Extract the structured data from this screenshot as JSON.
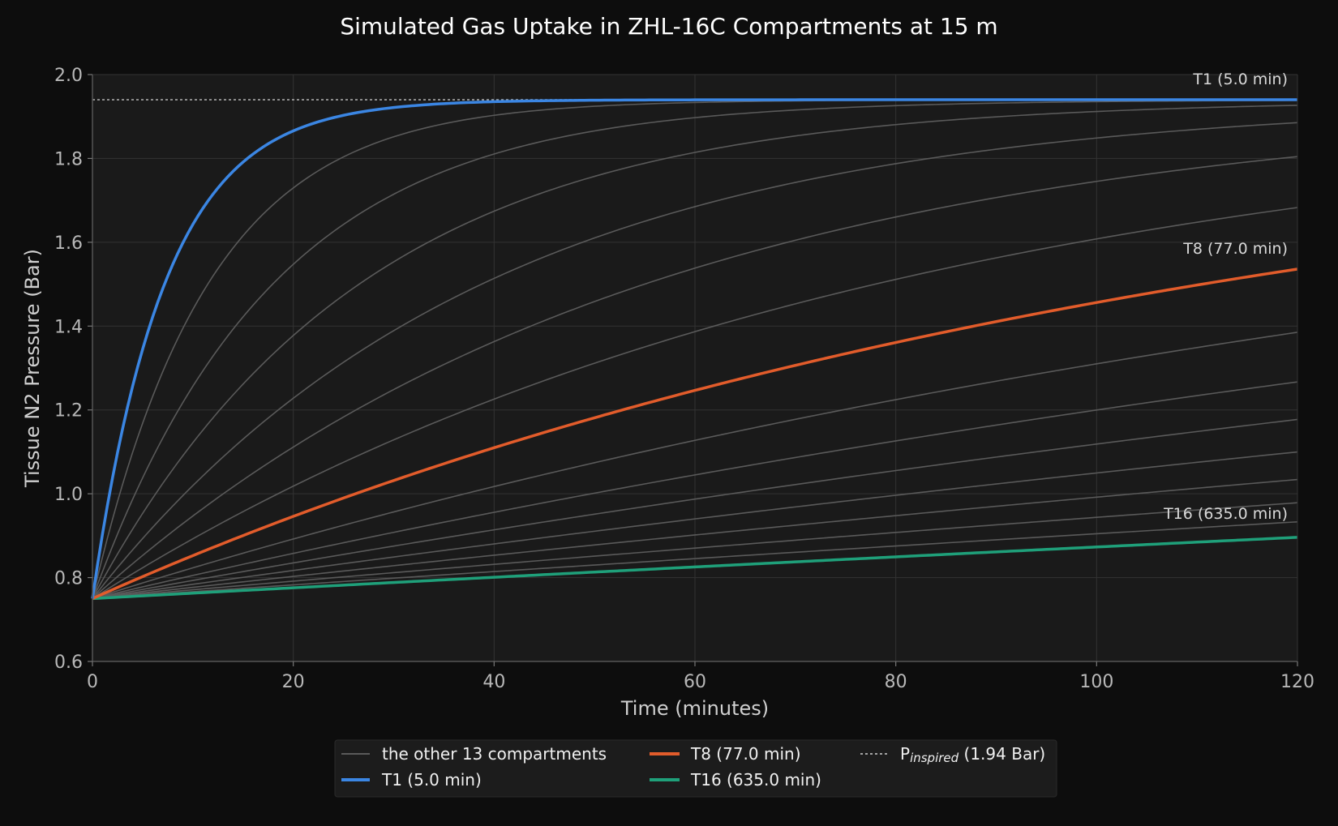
{
  "chart_data": {
    "type": "line",
    "title": "Simulated Gas Uptake in ZHL-16C Compartments at 15 m",
    "xlabel": "Time (minutes)",
    "ylabel": "Tissue N2 Pressure (Bar)",
    "xlim": [
      0,
      120
    ],
    "ylim": [
      0.6,
      2.0
    ],
    "xticks": [
      "0",
      "20",
      "40",
      "60",
      "80",
      "100",
      "120"
    ],
    "yticks": [
      "0.6",
      "0.8",
      "1.0",
      "1.2",
      "1.4",
      "1.6",
      "1.8",
      "2.0"
    ],
    "grid": true,
    "legend_position": "below",
    "p_initial": 0.75,
    "p_inspired": 1.94,
    "x": [
      0,
      5,
      10,
      15,
      20,
      30,
      40,
      60,
      80,
      100,
      120
    ],
    "series": [
      {
        "name": "T1 (5.0 min)",
        "half_time": 5.0,
        "color": "#3b86e3",
        "highlight": true,
        "values": [
          0.75,
          1.345,
          1.643,
          1.791,
          1.866,
          1.921,
          1.935,
          1.94,
          1.94,
          1.94,
          1.94
        ]
      },
      {
        "name": "T8 (77.0 min)",
        "half_time": 77.0,
        "color": "#e25c2b",
        "highlight": true,
        "values": [
          0.75,
          0.803,
          0.855,
          0.905,
          0.953,
          1.045,
          1.13,
          1.282,
          1.411,
          1.521,
          1.613
        ]
      },
      {
        "name": "T16 (635.0 min)",
        "half_time": 635.0,
        "color": "#1fa07a",
        "highlight": true,
        "values": [
          0.75,
          0.757,
          0.763,
          0.769,
          0.776,
          0.788,
          0.801,
          0.826,
          0.85,
          0.874,
          0.897
        ]
      }
    ],
    "other_compartments": {
      "name": "the other 13 compartments",
      "color": "#5a5a5a",
      "half_times": [
        8.0,
        12.5,
        18.5,
        27.0,
        38.3,
        54.3,
        109.0,
        146.0,
        187.0,
        239.0,
        305.0,
        390.0,
        498.0
      ]
    },
    "reference_line": {
      "label_main": "P",
      "label_sub": "inspired",
      "label_suffix": " (1.94 Bar)",
      "value": 1.94,
      "style": "dotted"
    },
    "curve_labels": [
      "T1 (5.0 min)",
      "T8 (77.0 min)",
      "T16 (635.0 min)"
    ],
    "legend": [
      "the other 13 compartments",
      "T1 (5.0 min)",
      "T8 (77.0 min)",
      "T16 (635.0 min)"
    ]
  }
}
